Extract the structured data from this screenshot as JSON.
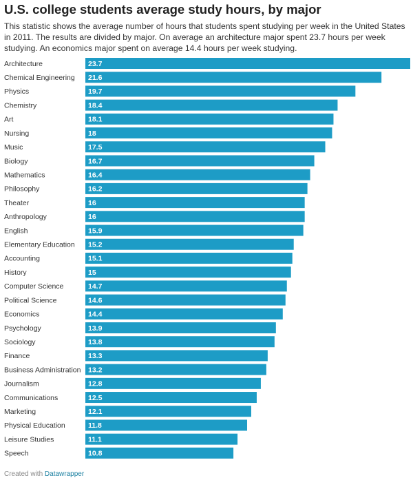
{
  "chart_data": {
    "type": "hbar",
    "title": "U.S. college students average study hours, by major",
    "subtitle": "This statistic shows the average number of hours that students spent studying per week in the United States in 2011. The results are divided by major. On average an architecture major spent 23.7 hours per week studying. An economics major spent on average 14.4 hours per week studying.",
    "categories": [
      "Architecture",
      "Chemical Engineering",
      "Physics",
      "Chemistry",
      "Art",
      "Nursing",
      "Music",
      "Biology",
      "Mathematics",
      "Philosophy",
      "Theater",
      "Anthropology",
      "English",
      "Elementary Education",
      "Accounting",
      "History",
      "Computer Science",
      "Political Science",
      "Economics",
      "Psychology",
      "Sociology",
      "Finance",
      "Business Administration",
      "Journalism",
      "Communications",
      "Marketing",
      "Physical Education",
      "Leisure Studies",
      "Speech"
    ],
    "values": [
      23.7,
      21.6,
      19.7,
      18.4,
      18.1,
      18,
      17.5,
      16.7,
      16.4,
      16.2,
      16,
      16,
      15.9,
      15.2,
      15.1,
      15,
      14.7,
      14.6,
      14.4,
      13.9,
      13.8,
      13.3,
      13.2,
      12.8,
      12.5,
      12.1,
      11.8,
      11.1,
      10.8
    ],
    "color": "#1d9cc6",
    "footer": {
      "prefix": "Created with",
      "link": "Datawrapper"
    }
  }
}
